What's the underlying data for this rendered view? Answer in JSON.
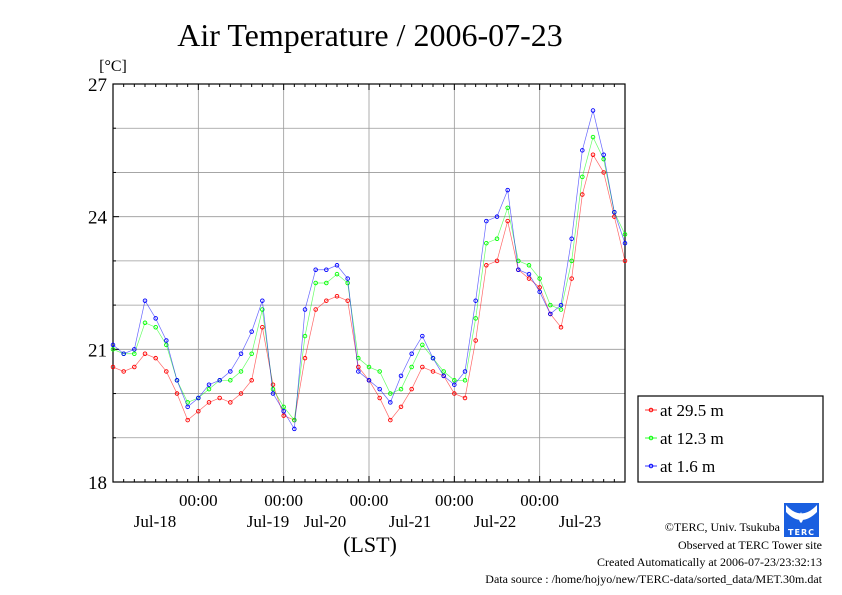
{
  "chart_data": {
    "type": "line",
    "title": "Air Temperature / 2006-07-23",
    "ylabel": "[°C]",
    "xlabel": "(LST)",
    "ylim": [
      18,
      27
    ],
    "yticks": [
      "18",
      "21",
      "24",
      "27"
    ],
    "x_hours_range": [
      0,
      144
    ],
    "x_ticks": [
      "00:00",
      "00:00",
      "00:00",
      "00:00",
      "00:00"
    ],
    "day_labels": [
      "Jul-18",
      "Jul-19",
      "Jul-20",
      "Jul-21",
      "Jul-22",
      "Jul-23"
    ],
    "grid": true,
    "legend_placement": "right-bottom",
    "x_hours": [
      0,
      3,
      6,
      9,
      12,
      15,
      18,
      21,
      24,
      27,
      30,
      33,
      36,
      39,
      42,
      45,
      48,
      51,
      54,
      57,
      60,
      63,
      66,
      69,
      72,
      75,
      78,
      81,
      84,
      87,
      90,
      93,
      96,
      99,
      102,
      105,
      108,
      111,
      114,
      117,
      120,
      123,
      126,
      129,
      132,
      135,
      138,
      141,
      144
    ],
    "series": [
      {
        "name": "at 29.5 m",
        "color": "#ff0000",
        "values": [
          20.6,
          20.5,
          20.6,
          20.9,
          20.8,
          20.5,
          20.0,
          19.4,
          19.6,
          19.8,
          19.9,
          19.8,
          20.0,
          20.3,
          21.5,
          20.2,
          19.5,
          19.4,
          20.8,
          21.9,
          22.1,
          22.2,
          22.1,
          20.6,
          20.3,
          19.9,
          19.4,
          19.7,
          20.1,
          20.6,
          20.5,
          20.4,
          20.0,
          19.9,
          21.2,
          22.9,
          23.0,
          23.9,
          22.8,
          22.6,
          22.4,
          21.8,
          21.5,
          22.6,
          24.5,
          25.4,
          25.0,
          24.0,
          23.0
        ]
      },
      {
        "name": "at 12.3 m",
        "color": "#00ff00",
        "values": [
          21.0,
          20.9,
          20.9,
          21.6,
          21.5,
          21.1,
          20.3,
          19.8,
          19.9,
          20.1,
          20.3,
          20.3,
          20.5,
          20.9,
          21.9,
          20.1,
          19.7,
          19.4,
          21.3,
          22.5,
          22.5,
          22.7,
          22.5,
          20.8,
          20.6,
          20.5,
          20.0,
          20.1,
          20.6,
          21.1,
          20.8,
          20.5,
          20.3,
          20.3,
          21.7,
          23.4,
          23.5,
          24.2,
          23.0,
          22.9,
          22.6,
          22.0,
          21.9,
          23.0,
          24.9,
          25.8,
          25.3,
          24.1,
          23.6
        ]
      },
      {
        "name": "at 1.6 m",
        "color": "#0000ff",
        "values": [
          21.1,
          20.9,
          21.0,
          22.1,
          21.7,
          21.2,
          20.3,
          19.7,
          19.9,
          20.2,
          20.3,
          20.5,
          20.9,
          21.4,
          22.1,
          20.0,
          19.6,
          19.2,
          21.9,
          22.8,
          22.8,
          22.9,
          22.6,
          20.5,
          20.3,
          20.1,
          19.8,
          20.4,
          20.9,
          21.3,
          20.8,
          20.4,
          20.2,
          20.5,
          22.1,
          23.9,
          24.0,
          24.6,
          22.8,
          22.7,
          22.3,
          21.8,
          22.0,
          23.5,
          25.5,
          26.4,
          25.4,
          24.1,
          23.4
        ]
      }
    ]
  },
  "footer": {
    "copyright": "©TERC, Univ. Tsukuba",
    "observed": "Observed at TERC Tower site",
    "created": "Created Automatically at 2006-07-23/23:32:13",
    "source": "Data source : /home/hojyo/new/TERC-data/sorted_data/MET.30m.dat",
    "logo_text": "TERC"
  }
}
